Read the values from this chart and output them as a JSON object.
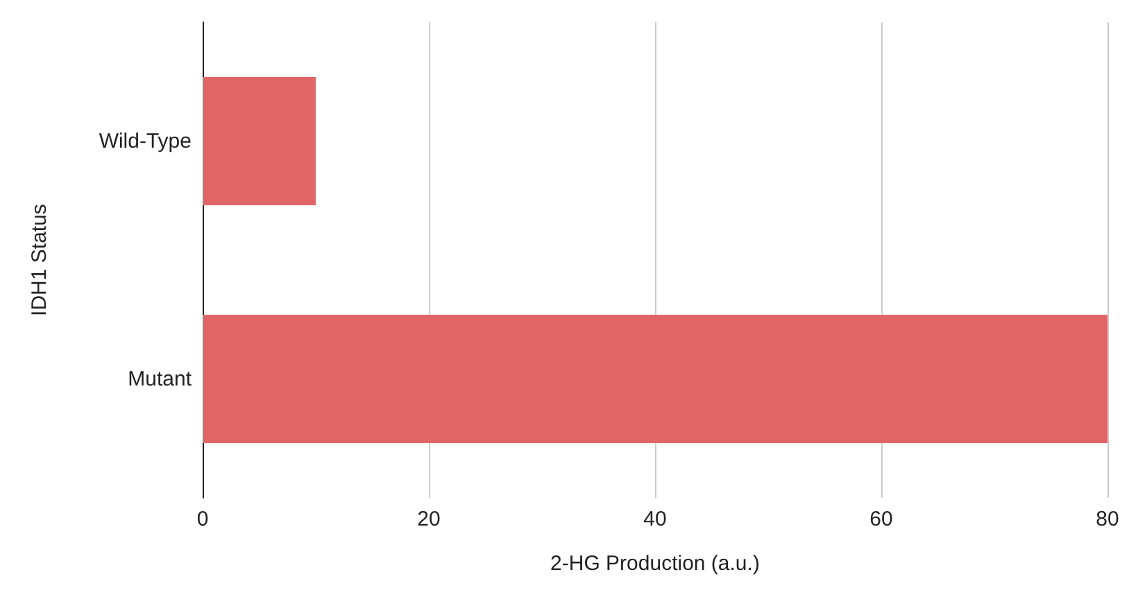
{
  "chart_data": {
    "type": "bar",
    "orientation": "horizontal",
    "xlabel": "2-HG Production (a.u.)",
    "ylabel": "IDH1 Status",
    "categories": [
      "Wild-Type",
      "Mutant"
    ],
    "values": [
      10,
      80
    ],
    "color": "#e06666",
    "xlim": [
      0,
      80
    ],
    "xticks": [
      0,
      20,
      40,
      60,
      80
    ],
    "grid": "x"
  }
}
